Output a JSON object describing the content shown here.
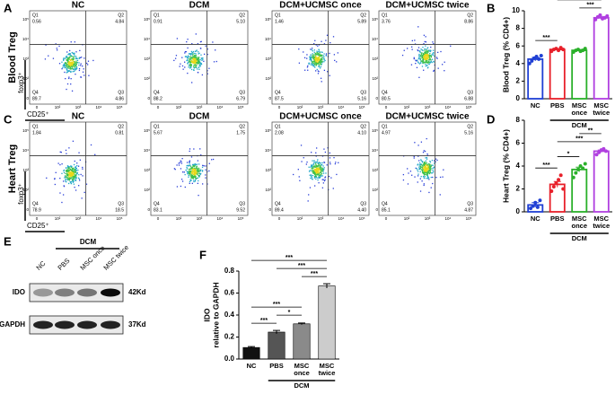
{
  "panel_letters": [
    "A",
    "B",
    "C",
    "D",
    "E",
    "F"
  ],
  "flow": {
    "y_axis_label": "foxp3⁺",
    "x_axis_label": "CD25⁺",
    "tick_labels": [
      "0",
      "10²",
      "10³",
      "10⁴",
      "10⁵"
    ],
    "quadrant_names": [
      "Q1",
      "Q2",
      "Q3",
      "Q4"
    ],
    "rows": [
      {
        "label": "Blood Treg",
        "plots": [
          {
            "title": "NC",
            "q1": "0.56",
            "q2": "4.84",
            "q3": "4.86",
            "q4": "89.7"
          },
          {
            "title": "DCM",
            "q1": "0.91",
            "q2": "5.10",
            "q3": "6.79",
            "q4": "88.2"
          },
          {
            "title": "DCM+UCMSC once",
            "q1": "1.46",
            "q2": "5.89",
            "q3": "5.16",
            "q4": "87.5"
          },
          {
            "title": "DCM+UCMSC twice",
            "q1": "3.76",
            "q2": "8.86",
            "q3": "6.88",
            "q4": "80.5"
          }
        ]
      },
      {
        "label": "Heart Treg",
        "plots": [
          {
            "title": "NC",
            "q1": "1.84",
            "q2": "0.81",
            "q3": "18.5",
            "q4": "78.9"
          },
          {
            "title": "DCM",
            "q1": "5.67",
            "q2": "1.75",
            "q3": "9.52",
            "q4": "83.1"
          },
          {
            "title": "DCM+UCMSC once",
            "q1": "2.08",
            "q2": "4.10",
            "q3": "4.40",
            "q4": "89.4"
          },
          {
            "title": "DCM+UCMSC twice",
            "q1": "4.97",
            "q2": "5.16",
            "q3": "4.87",
            "q4": "85.1"
          }
        ]
      }
    ]
  },
  "chart_data": [
    {
      "type": "bar",
      "y_label": "Blood Treg (% CD4+)",
      "bar_style": "outline",
      "categories": [
        "NC",
        "PBS",
        "MSC once",
        "MSC twice"
      ],
      "group_label": "DCM",
      "values": [
        4.5,
        5.6,
        5.5,
        9.2
      ],
      "errors": [
        0.2,
        0.1,
        0.1,
        0.15
      ],
      "points": [
        [
          4.0,
          4.3,
          4.6,
          4.8,
          4.5,
          4.9
        ],
        [
          5.4,
          5.6,
          5.7,
          5.5,
          5.8,
          5.6
        ],
        [
          5.3,
          5.5,
          5.6,
          5.4,
          5.5,
          5.7
        ],
        [
          9.0,
          9.3,
          9.5,
          9.1,
          9.2,
          9.4
        ]
      ],
      "colors": [
        "#1f3fd4",
        "#e8202a",
        "#2ab02a",
        "#b03fe0"
      ],
      "ylim": [
        0,
        10
      ],
      "yticks": [
        0,
        2,
        4,
        6,
        8,
        10
      ],
      "annotations": [
        {
          "between": [
            "NC",
            "PBS"
          ],
          "label": "***"
        },
        {
          "between": [
            "MSC once",
            "MSC twice"
          ],
          "label": "***"
        },
        {
          "between": [
            "PBS",
            "MSC twice"
          ],
          "label": "***"
        }
      ]
    },
    {
      "type": "bar",
      "y_label": "Heart Treg (% CD4+)",
      "bar_style": "outline",
      "categories": [
        "NC",
        "PBS",
        "MSC once",
        "MSC twice"
      ],
      "group_label": "DCM",
      "values": [
        0.6,
        2.4,
        3.7,
        5.3
      ],
      "errors": [
        0.2,
        0.25,
        0.2,
        0.1
      ],
      "points": [
        [
          0.3,
          0.5,
          0.8,
          0.4,
          1.0
        ],
        [
          1.8,
          2.2,
          2.5,
          2.8,
          3.2,
          2.0
        ],
        [
          3.0,
          3.4,
          3.7,
          4.0,
          3.8,
          4.2
        ],
        [
          5.0,
          5.2,
          5.4,
          5.5,
          5.3
        ]
      ],
      "colors": [
        "#1f3fd4",
        "#e8202a",
        "#2ab02a",
        "#b03fe0"
      ],
      "ylim": [
        0,
        8
      ],
      "yticks": [
        0,
        2,
        4,
        6,
        8
      ],
      "annotations": [
        {
          "between": [
            "NC",
            "PBS"
          ],
          "label": "***"
        },
        {
          "between": [
            "PBS",
            "MSC once"
          ],
          "label": "*"
        },
        {
          "between": [
            "PBS",
            "MSC twice"
          ],
          "label": "***"
        },
        {
          "between": [
            "MSC once",
            "MSC twice"
          ],
          "label": "**"
        }
      ]
    },
    {
      "type": "bar",
      "y_label": [
        "IDO",
        "relative to GAPDH"
      ],
      "bar_style": "filled",
      "categories": [
        "NC",
        "PBS",
        "MSC once",
        "MSC twice"
      ],
      "group_label": "DCM",
      "values": [
        0.105,
        0.245,
        0.32,
        0.665
      ],
      "errors": [
        0.008,
        0.015,
        0.008,
        0.02
      ],
      "colors": [
        "#111111",
        "#555555",
        "#8a8a8a",
        "#cccccc"
      ],
      "ylim": [
        0,
        0.8
      ],
      "yticks": [
        {
          "value": 0,
          "label": "0.0"
        },
        {
          "value": 0.2,
          "label": "0.2"
        },
        {
          "value": 0.4,
          "label": "0.4"
        },
        {
          "value": 0.6,
          "label": "0.6"
        },
        {
          "value": 0.8,
          "label": "0.8"
        }
      ],
      "annotations": [
        {
          "between": [
            "NC",
            "PBS"
          ],
          "label": "***"
        },
        {
          "between": [
            "PBS",
            "MSC once"
          ],
          "label": "*"
        },
        {
          "between": [
            "NC",
            "MSC once"
          ],
          "label": "***"
        },
        {
          "between": [
            "MSC once",
            "MSC twice"
          ],
          "label": "***"
        },
        {
          "between": [
            "PBS",
            "MSC twice"
          ],
          "label": "***"
        },
        {
          "between": [
            "NC",
            "MSC twice"
          ],
          "label": "***"
        }
      ]
    }
  ],
  "blot": {
    "group_label": "DCM",
    "lanes": [
      "NC",
      "PBS",
      "MSC once",
      "MSC twice"
    ],
    "rows": [
      {
        "label": "IDO",
        "size": "42Kd"
      },
      {
        "label": "GAPDH",
        "size": "37Kd"
      }
    ]
  }
}
